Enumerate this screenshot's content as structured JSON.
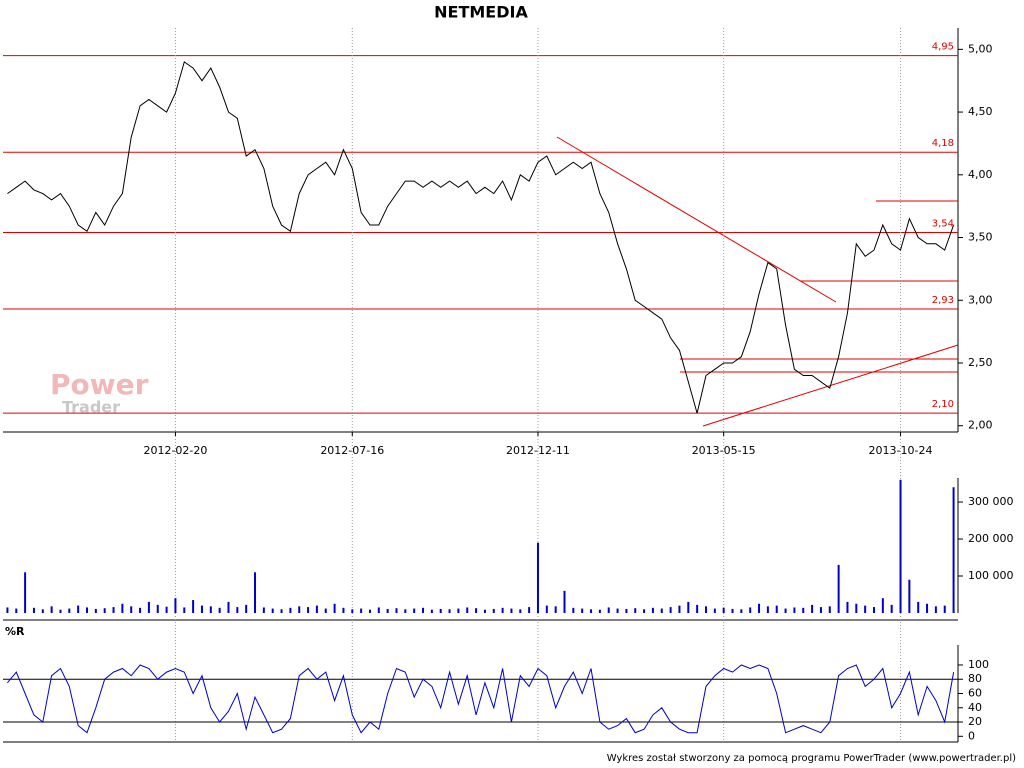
{
  "chart_data": [
    {
      "type": "line",
      "title": "NETMEDIA",
      "color": "#000000",
      "categories": [
        null,
        null,
        null,
        null,
        null,
        null,
        null,
        null,
        null,
        null,
        null,
        null,
        null,
        null,
        null,
        null,
        null,
        null,
        null,
        "2012-02-20",
        null,
        null,
        null,
        null,
        null,
        null,
        null,
        null,
        null,
        null,
        null,
        null,
        null,
        null,
        null,
        null,
        null,
        null,
        null,
        "2012-07-16",
        null,
        null,
        null,
        null,
        null,
        null,
        null,
        null,
        null,
        null,
        null,
        null,
        null,
        null,
        null,
        null,
        null,
        null,
        null,
        null,
        "2012-12-11",
        null,
        null,
        null,
        null,
        null,
        null,
        null,
        null,
        null,
        null,
        null,
        null,
        null,
        null,
        null,
        null,
        null,
        null,
        null,
        null,
        "2013-05-15",
        null,
        null,
        null,
        null,
        null,
        null,
        null,
        null,
        null,
        null,
        null,
        null,
        null,
        null,
        null,
        null,
        null,
        null,
        null,
        "2013-10-24",
        null,
        null,
        null,
        null,
        null,
        null
      ],
      "values": [
        3.85,
        3.9,
        3.95,
        3.88,
        3.85,
        3.8,
        3.85,
        3.75,
        3.6,
        3.55,
        3.7,
        3.6,
        3.75,
        3.85,
        4.3,
        4.55,
        4.6,
        4.55,
        4.5,
        4.65,
        4.9,
        4.85,
        4.75,
        4.85,
        4.7,
        4.5,
        4.45,
        4.15,
        4.2,
        4.05,
        3.75,
        3.6,
        3.55,
        3.85,
        4.0,
        4.05,
        4.1,
        4.0,
        4.2,
        4.05,
        3.7,
        3.6,
        3.6,
        3.75,
        3.85,
        3.95,
        3.95,
        3.9,
        3.95,
        3.9,
        3.95,
        3.9,
        3.95,
        3.85,
        3.9,
        3.85,
        3.95,
        3.8,
        4.0,
        3.95,
        4.1,
        4.15,
        4.0,
        4.05,
        4.1,
        4.05,
        4.1,
        3.85,
        3.7,
        3.45,
        3.25,
        3.0,
        2.95,
        2.9,
        2.85,
        2.7,
        2.6,
        2.35,
        2.1,
        2.4,
        2.45,
        2.5,
        2.5,
        2.55,
        2.75,
        3.05,
        3.3,
        3.25,
        2.8,
        2.45,
        2.4,
        2.4,
        2.35,
        2.3,
        2.55,
        2.9,
        3.45,
        3.35,
        3.4,
        3.6,
        3.45,
        3.4,
        3.65,
        3.5,
        3.45,
        3.45,
        3.4,
        3.6
      ],
      "ylim": [
        1.95,
        5.17
      ],
      "yticks": [
        {
          "value": 2.0,
          "label": "2,00"
        },
        {
          "value": 2.5,
          "label": "2,50"
        },
        {
          "value": 3.0,
          "label": "3,00"
        },
        {
          "value": 3.5,
          "label": "3,50"
        },
        {
          "value": 4.0,
          "label": "4,00"
        },
        {
          "value": 4.5,
          "label": "4,50"
        },
        {
          "value": 5.0,
          "label": "5,00"
        }
      ],
      "levels": [
        {
          "value": 4.95,
          "label": "4,95"
        },
        {
          "value": 4.18,
          "label": "4,18"
        },
        {
          "value": 3.54,
          "label": "3,54"
        },
        {
          "value": 2.93,
          "label": "2,93"
        },
        {
          "value": 2.1,
          "label": "2,10"
        }
      ],
      "level_color": "#e00000"
    },
    {
      "type": "bar",
      "color": "#0000cc",
      "values": [
        15000,
        12000,
        110000,
        14000,
        10000,
        18000,
        9000,
        12000,
        20000,
        15000,
        11000,
        13000,
        16000,
        25000,
        18000,
        14000,
        30000,
        22000,
        17000,
        40000,
        15000,
        35000,
        20000,
        18000,
        14000,
        30000,
        16000,
        22000,
        110000,
        15000,
        12000,
        10000,
        14000,
        18000,
        16000,
        20000,
        12000,
        25000,
        14000,
        10000,
        12000,
        9000,
        15000,
        11000,
        13000,
        10000,
        12000,
        14000,
        9000,
        11000,
        10000,
        12000,
        15000,
        13000,
        9000,
        11000,
        14000,
        12000,
        10000,
        16000,
        190000,
        20000,
        18000,
        60000,
        14000,
        12000,
        10000,
        9000,
        15000,
        12000,
        11000,
        13000,
        10000,
        14000,
        12000,
        16000,
        20000,
        30000,
        22000,
        18000,
        12000,
        14000,
        11000,
        10000,
        15000,
        25000,
        18000,
        20000,
        12000,
        15000,
        14000,
        22000,
        16000,
        18000,
        130000,
        30000,
        25000,
        20000,
        16000,
        40000,
        22000,
        360000,
        90000,
        30000,
        25000,
        18000,
        20000,
        340000
      ],
      "ylim": [
        0,
        365000
      ],
      "yticks": [
        {
          "value": 100000,
          "label": "100 000"
        },
        {
          "value": 200000,
          "label": "200 000"
        },
        {
          "value": 300000,
          "label": "300 000"
        }
      ]
    },
    {
      "type": "line",
      "title": "%R",
      "color": "#0000cc",
      "values": [
        75,
        90,
        60,
        30,
        20,
        85,
        95,
        70,
        15,
        5,
        40,
        80,
        90,
        95,
        85,
        100,
        95,
        80,
        90,
        95,
        90,
        60,
        85,
        40,
        20,
        35,
        60,
        10,
        55,
        30,
        5,
        10,
        25,
        85,
        95,
        80,
        90,
        50,
        85,
        30,
        5,
        20,
        10,
        60,
        95,
        90,
        55,
        80,
        70,
        40,
        90,
        45,
        85,
        30,
        75,
        40,
        95,
        20,
        85,
        70,
        95,
        85,
        40,
        70,
        90,
        60,
        95,
        20,
        10,
        15,
        25,
        5,
        10,
        30,
        40,
        20,
        10,
        5,
        5,
        70,
        85,
        95,
        90,
        100,
        95,
        100,
        95,
        60,
        5,
        10,
        15,
        10,
        5,
        20,
        85,
        95,
        100,
        70,
        80,
        95,
        40,
        60,
        90,
        30,
        70,
        50,
        20,
        90
      ],
      "ylim": [
        -8,
        128
      ],
      "yticks": [
        0,
        20,
        40,
        60,
        80,
        100
      ],
      "ref_lines": [
        20,
        80
      ]
    }
  ],
  "footer": "Wykres został stworzony za pomocą programu PowerTrader (www.powertrader.pl)",
  "watermark": {
    "line1": "Power",
    "line2": "Trader"
  }
}
